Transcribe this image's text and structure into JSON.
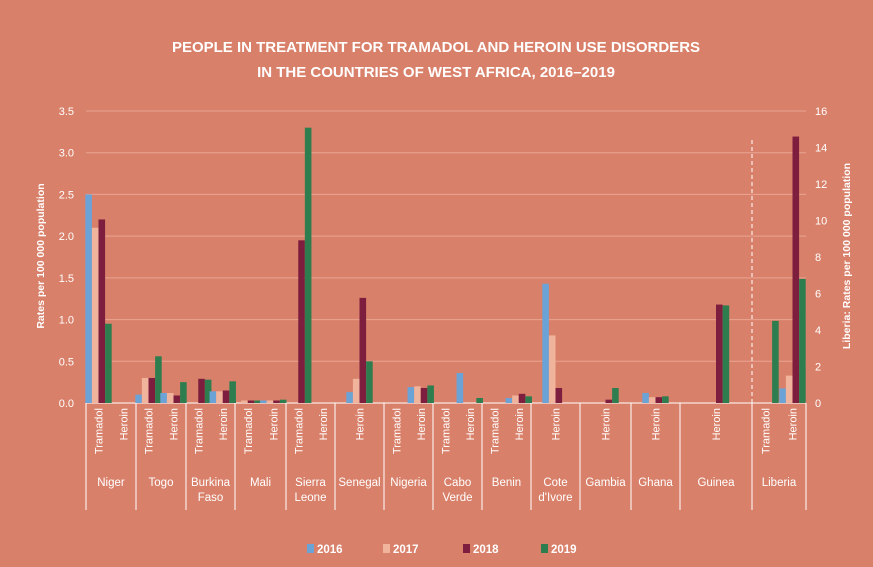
{
  "chart_data": {
    "type": "bar",
    "title_lines": [
      "PEOPLE IN TREATMENT FOR TRAMADOL AND HEROIN USE DISORDERS",
      "IN THE COUNTRIES OF WEST AFRICA, 2016–2019"
    ],
    "ylabel_left": "Rates per 100 000 population",
    "ylabel_right": "Liberia: Rates per 100 000 population",
    "ylim_left": [
      0,
      3.5
    ],
    "ylim_right": [
      0,
      16
    ],
    "yticks_left": [
      "0.0",
      "0.5",
      "1.0",
      "1.5",
      "2.0",
      "2.5",
      "3.0",
      "3.5"
    ],
    "yticks_right": [
      "0",
      "2",
      "4",
      "6",
      "8",
      "10",
      "12",
      "14",
      "16"
    ],
    "series_names": [
      "2016",
      "2017",
      "2018",
      "2019"
    ],
    "colors": [
      "#6BA3D6",
      "#F0B49C",
      "#7E1E3E",
      "#2E7D4F"
    ],
    "groups": [
      {
        "country": [
          "Niger"
        ],
        "bars": [
          {
            "drug": "Tramadol",
            "values": [
              2.5,
              2.1,
              2.2,
              0.95
            ]
          },
          {
            "drug": "Heroin",
            "values": [
              0,
              0,
              0,
              0
            ]
          }
        ]
      },
      {
        "country": [
          "Togo"
        ],
        "bars": [
          {
            "drug": "Tramadol",
            "values": [
              0.1,
              0.3,
              0.3,
              0.56
            ]
          },
          {
            "drug": "Heroin",
            "values": [
              0.12,
              0.12,
              0.09,
              0.25
            ]
          }
        ]
      },
      {
        "country": [
          "Burkina",
          "Faso"
        ],
        "bars": [
          {
            "drug": "Tramadol",
            "values": [
              0,
              0,
              0.29,
              0.28
            ]
          },
          {
            "drug": "Heroin",
            "values": [
              0.14,
              0.14,
              0.15,
              0.26
            ]
          }
        ]
      },
      {
        "country": [
          "Mali"
        ],
        "bars": [
          {
            "drug": "Tramadol",
            "values": [
              0,
              0.03,
              0.03,
              0.03
            ]
          },
          {
            "drug": "Heroin",
            "values": [
              0.03,
              0.03,
              0.03,
              0.04
            ]
          }
        ]
      },
      {
        "country": [
          "Sierra",
          "Leone"
        ],
        "bars": [
          {
            "drug": "Tramadol",
            "values": [
              0,
              0,
              1.95,
              3.3
            ]
          },
          {
            "drug": "Heroin",
            "values": [
              0,
              0,
              0,
              0
            ]
          }
        ]
      },
      {
        "country": [
          "Senegal"
        ],
        "bars": [
          {
            "drug": "Heroin",
            "values": [
              0.13,
              0.29,
              1.26,
              0.5
            ]
          }
        ]
      },
      {
        "country": [
          "Nigeria"
        ],
        "bars": [
          {
            "drug": "Tramadol",
            "values": [
              0,
              0,
              0,
              0
            ]
          },
          {
            "drug": "Heroin",
            "values": [
              0.19,
              0.2,
              0.18,
              0.21
            ]
          }
        ]
      },
      {
        "country": [
          "Cabo",
          "Verde"
        ],
        "bars": [
          {
            "drug": "Tramadol",
            "values": [
              0,
              0,
              0,
              0
            ]
          },
          {
            "drug": "Heroin",
            "values": [
              0.36,
              0,
              0,
              0.06
            ]
          }
        ]
      },
      {
        "country": [
          "Benin"
        ],
        "bars": [
          {
            "drug": "Tramadol",
            "values": [
              0,
              0,
              0,
              0
            ]
          },
          {
            "drug": "Heroin",
            "values": [
              0.06,
              0.09,
              0.11,
              0.08
            ]
          }
        ]
      },
      {
        "country": [
          "Cote",
          "d'Ivore"
        ],
        "bars": [
          {
            "drug": "Heroin",
            "values": [
              1.43,
              0.81,
              0.18,
              0
            ]
          }
        ]
      },
      {
        "country": [
          "Gambia"
        ],
        "bars": [
          {
            "drug": "Heroin",
            "values": [
              0,
              0,
              0.04,
              0.18
            ]
          }
        ]
      },
      {
        "country": [
          "Ghana"
        ],
        "bars": [
          {
            "drug": "Heroin",
            "values": [
              0.12,
              0.07,
              0.07,
              0.08
            ]
          }
        ]
      },
      {
        "country": [
          "Guinea"
        ],
        "bars": [
          {
            "drug": "Heroin",
            "values": [
              0,
              0,
              1.18,
              1.17
            ]
          }
        ]
      },
      {
        "country": [
          "Liberia"
        ],
        "axis": "right",
        "bars": [
          {
            "drug": "Tramadol",
            "values": [
              0,
              0,
              0,
              4.5
            ]
          },
          {
            "drug": "Heroin",
            "values": [
              0.8,
              1.5,
              14.6,
              6.8
            ]
          }
        ]
      }
    ]
  }
}
